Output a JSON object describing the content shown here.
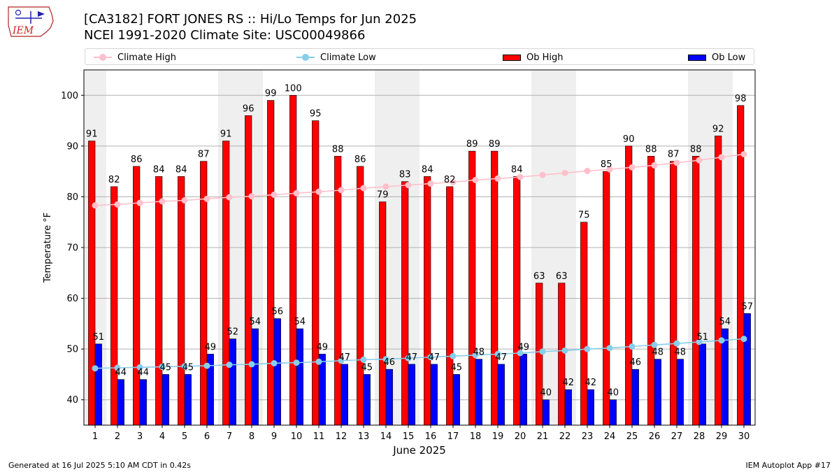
{
  "title_line1": "[CA3182] FORT JONES RS :: Hi/Lo Temps for Jun 2025",
  "title_line2": "NCEI 1991-2020 Climate Site: USC00049866",
  "logo_text": "IEM",
  "footer_left": "Generated at 16 Jul 2025 5:10 AM CDT in 0.42s",
  "footer_right": "IEM Autoplot App #17",
  "legend": [
    {
      "label": "Climate High",
      "color": "#ffc0cb",
      "kind": "line"
    },
    {
      "label": "Climate Low",
      "color": "#87ceeb",
      "kind": "line"
    },
    {
      "label": "Ob High",
      "color": "#ff0000",
      "kind": "bar"
    },
    {
      "label": "Ob Low",
      "color": "#0000ff",
      "kind": "bar"
    }
  ],
  "chart_data": {
    "type": "bar",
    "xlabel": "June 2025",
    "ylabel": "Temperature °F",
    "ylim": [
      35,
      105
    ],
    "xlim": [
      0.5,
      30.5
    ],
    "yticks": [
      40,
      50,
      60,
      70,
      80,
      90,
      100
    ],
    "grid": true,
    "legend_position": "top",
    "weekend_shading_days": [
      1,
      7,
      8,
      14,
      15,
      21,
      22,
      28,
      29
    ],
    "categories": [
      "1",
      "2",
      "3",
      "4",
      "5",
      "6",
      "7",
      "8",
      "9",
      "10",
      "11",
      "12",
      "13",
      "14",
      "15",
      "16",
      "17",
      "18",
      "19",
      "20",
      "21",
      "22",
      "23",
      "24",
      "25",
      "26",
      "27",
      "28",
      "29",
      "30"
    ],
    "series": [
      {
        "name": "Ob High",
        "kind": "bar",
        "color": "#ff0000",
        "values": [
          91,
          82,
          86,
          84,
          84,
          87,
          91,
          96,
          99,
          100,
          95,
          88,
          86,
          79,
          83,
          84,
          82,
          89,
          89,
          84,
          63,
          63,
          75,
          85,
          90,
          88,
          87,
          88,
          92,
          98
        ]
      },
      {
        "name": "Ob Low",
        "kind": "bar",
        "color": "#0000ff",
        "values": [
          51,
          44,
          44,
          45,
          45,
          49,
          52,
          54,
          56,
          54,
          49,
          47,
          45,
          46,
          47,
          47,
          45,
          48,
          47,
          49,
          40,
          42,
          42,
          40,
          46,
          48,
          48,
          51,
          54,
          57
        ]
      },
      {
        "name": "Climate High",
        "kind": "line",
        "color": "#ffc0cb",
        "values": [
          78.3,
          78.5,
          78.8,
          79.1,
          79.3,
          79.6,
          79.9,
          80.1,
          80.4,
          80.7,
          81.0,
          81.3,
          81.7,
          82.0,
          82.3,
          82.6,
          82.9,
          83.3,
          83.6,
          83.9,
          84.3,
          84.7,
          85.1,
          85.4,
          85.8,
          86.2,
          86.7,
          87.2,
          87.8,
          88.4
        ]
      },
      {
        "name": "Climate Low",
        "kind": "line",
        "color": "#87ceeb",
        "values": [
          46.2,
          46.3,
          46.4,
          46.5,
          46.6,
          46.7,
          46.9,
          47.0,
          47.2,
          47.3,
          47.5,
          47.7,
          47.9,
          48.0,
          48.2,
          48.4,
          48.6,
          48.8,
          49.0,
          49.2,
          49.5,
          49.7,
          50.0,
          50.2,
          50.5,
          50.8,
          51.1,
          51.4,
          51.7,
          52.0
        ]
      }
    ]
  }
}
